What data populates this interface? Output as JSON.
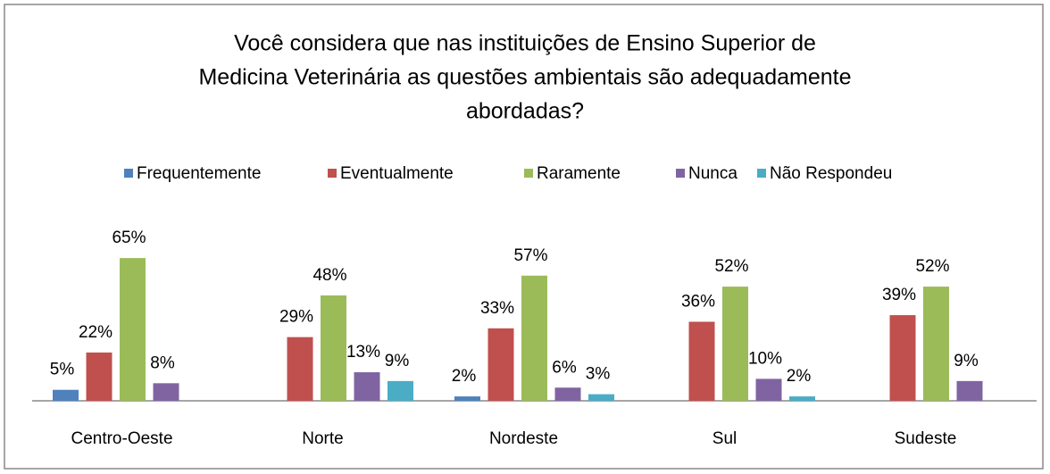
{
  "chart_data": {
    "type": "bar",
    "title": [
      "Você considera que nas instituições de Ensino Superior de",
      "Medicina Veterinária as questões ambientais são adequadamente",
      "abordadas?"
    ],
    "categories": [
      "Centro-Oeste",
      "Norte",
      "Nordeste",
      "Sul",
      "Sudeste"
    ],
    "series": [
      {
        "name": "Frequentemente",
        "color": "#4f81bd",
        "values": [
          5,
          null,
          2,
          null,
          null
        ],
        "value_labels": [
          "5%",
          null,
          "2%",
          null,
          null
        ]
      },
      {
        "name": "Eventualmente",
        "color": "#c0504d",
        "values": [
          22,
          29,
          33,
          36,
          39
        ],
        "value_labels": [
          "22%",
          "29%",
          "33%",
          "36%",
          "39%"
        ]
      },
      {
        "name": "Raramente",
        "color": "#9bbb59",
        "values": [
          65,
          48,
          57,
          52,
          52
        ],
        "value_labels": [
          "65%",
          "48%",
          "57%",
          "52%",
          "52%"
        ]
      },
      {
        "name": "Nunca",
        "color": "#8064a2",
        "values": [
          8,
          13,
          6,
          10,
          9
        ],
        "value_labels": [
          "8%",
          "13%",
          "6%",
          "10%",
          "9%"
        ]
      },
      {
        "name": "Não Respondeu",
        "color": "#4bacc6",
        "values": [
          null,
          9,
          3,
          2,
          null
        ],
        "value_labels": [
          null,
          "9%",
          "3%",
          "2%",
          null
        ]
      }
    ],
    "legend": "top"
  }
}
